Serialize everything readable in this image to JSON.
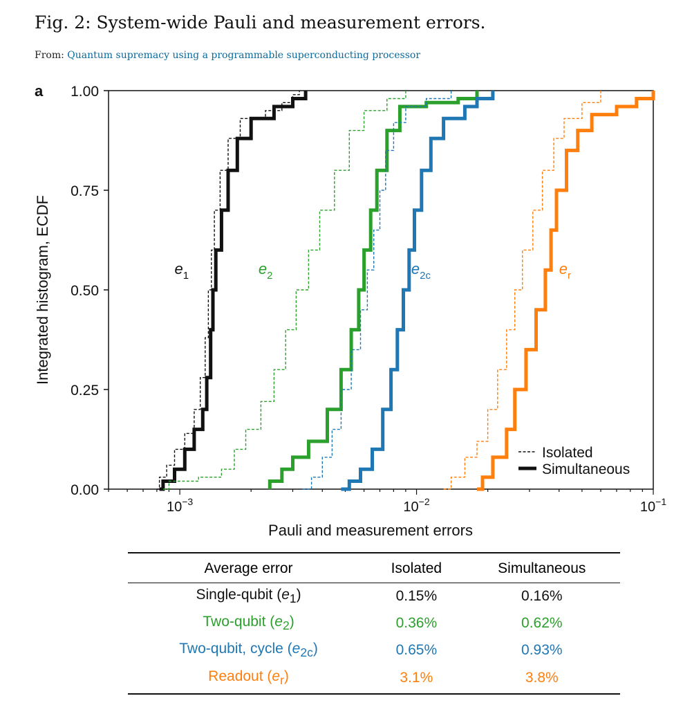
{
  "figure": {
    "title": "Fig. 2: System-wide Pauli and measurement errors.",
    "from_label": "From:",
    "from_link": "Quantum supremacy using a programmable superconducting processor",
    "panel_label": "a"
  },
  "colors": {
    "e1": "#111111",
    "e2": "#2ca02c",
    "e2c": "#1f77b4",
    "er": "#ff7f0e"
  },
  "chart_data": {
    "type": "line",
    "subtype": "ecdf",
    "xscale": "log",
    "xlim": [
      0.0005,
      0.1
    ],
    "ylim": [
      0,
      1
    ],
    "xlabel": "Pauli and measurement errors",
    "ylabel": "Integrated histogram, ECDF",
    "x_ticks": [
      {
        "value": 0.001,
        "base": "10",
        "exp": "−3"
      },
      {
        "value": 0.01,
        "base": "10",
        "exp": "−2"
      },
      {
        "value": 0.1,
        "base": "10",
        "exp": "−1"
      }
    ],
    "y_ticks": [
      {
        "value": 0,
        "label": "0.00"
      },
      {
        "value": 0.25,
        "label": "0.25"
      },
      {
        "value": 0.5,
        "label": "0.50"
      },
      {
        "value": 0.75,
        "label": "0.75"
      },
      {
        "value": 1,
        "label": "1.00"
      }
    ],
    "legend": {
      "position": "bottom-right",
      "entries": [
        {
          "label": "Isolated",
          "style": "dashed"
        },
        {
          "label": "Simultaneous",
          "style": "solid"
        }
      ]
    },
    "series": [
      {
        "key": "e1",
        "label_base": "e",
        "label_sub": "1",
        "label_at": [
          0.00095,
          0.54
        ],
        "isolated": [
          [
            0.0008,
            0
          ],
          [
            0.00082,
            0.03
          ],
          [
            0.00088,
            0.06
          ],
          [
            0.00095,
            0.1
          ],
          [
            0.00105,
            0.14
          ],
          [
            0.00115,
            0.2
          ],
          [
            0.00122,
            0.28
          ],
          [
            0.00128,
            0.38
          ],
          [
            0.00132,
            0.5
          ],
          [
            0.00136,
            0.6
          ],
          [
            0.0014,
            0.7
          ],
          [
            0.00148,
            0.8
          ],
          [
            0.0016,
            0.88
          ],
          [
            0.0018,
            0.93
          ],
          [
            0.0023,
            0.95
          ],
          [
            0.0027,
            0.97
          ],
          [
            0.003,
            0.99
          ],
          [
            0.0032,
            1
          ]
        ],
        "simultaneous": [
          [
            0.00082,
            0
          ],
          [
            0.00085,
            0.02
          ],
          [
            0.00095,
            0.05
          ],
          [
            0.00105,
            0.1
          ],
          [
            0.00115,
            0.15
          ],
          [
            0.00125,
            0.2
          ],
          [
            0.0013,
            0.28
          ],
          [
            0.00135,
            0.4
          ],
          [
            0.00138,
            0.5
          ],
          [
            0.00142,
            0.6
          ],
          [
            0.0015,
            0.7
          ],
          [
            0.0016,
            0.8
          ],
          [
            0.00175,
            0.88
          ],
          [
            0.002,
            0.93
          ],
          [
            0.0025,
            0.96
          ],
          [
            0.003,
            0.98
          ],
          [
            0.0034,
            1
          ]
        ]
      },
      {
        "key": "e2",
        "label_base": "e",
        "label_sub": "2",
        "label_at": [
          0.00215,
          0.54
        ],
        "isolated": [
          [
            0.00085,
            0
          ],
          [
            0.0009,
            0.02
          ],
          [
            0.0012,
            0.03
          ],
          [
            0.0015,
            0.05
          ],
          [
            0.0017,
            0.1
          ],
          [
            0.0019,
            0.15
          ],
          [
            0.0022,
            0.22
          ],
          [
            0.0025,
            0.3
          ],
          [
            0.0028,
            0.4
          ],
          [
            0.0031,
            0.5
          ],
          [
            0.0035,
            0.6
          ],
          [
            0.0039,
            0.7
          ],
          [
            0.0045,
            0.8
          ],
          [
            0.0052,
            0.9
          ],
          [
            0.006,
            0.95
          ],
          [
            0.0075,
            0.98
          ],
          [
            0.009,
            1
          ]
        ],
        "simultaneous": [
          [
            0.0024,
            0
          ],
          [
            0.0024,
            0.02
          ],
          [
            0.0027,
            0.05
          ],
          [
            0.003,
            0.08
          ],
          [
            0.0035,
            0.12
          ],
          [
            0.0042,
            0.2
          ],
          [
            0.0048,
            0.3
          ],
          [
            0.0053,
            0.4
          ],
          [
            0.0057,
            0.5
          ],
          [
            0.006,
            0.6
          ],
          [
            0.0064,
            0.7
          ],
          [
            0.0068,
            0.8
          ],
          [
            0.0075,
            0.9
          ],
          [
            0.0085,
            0.96
          ],
          [
            0.011,
            0.97
          ],
          [
            0.015,
            0.98
          ],
          [
            0.018,
            1
          ]
        ]
      },
      {
        "key": "e2c",
        "label_base": "e",
        "label_sub": "2c",
        "label_at": [
          0.0095,
          0.54
        ],
        "isolated": [
          [
            0.0033,
            0
          ],
          [
            0.0036,
            0.03
          ],
          [
            0.004,
            0.08
          ],
          [
            0.0044,
            0.15
          ],
          [
            0.0048,
            0.25
          ],
          [
            0.0053,
            0.35
          ],
          [
            0.0058,
            0.45
          ],
          [
            0.0062,
            0.55
          ],
          [
            0.0066,
            0.65
          ],
          [
            0.007,
            0.75
          ],
          [
            0.0074,
            0.85
          ],
          [
            0.008,
            0.92
          ],
          [
            0.009,
            0.96
          ],
          [
            0.011,
            0.98
          ],
          [
            0.014,
            1
          ]
        ],
        "simultaneous": [
          [
            0.0048,
            0
          ],
          [
            0.0052,
            0.02
          ],
          [
            0.0058,
            0.05
          ],
          [
            0.0065,
            0.1
          ],
          [
            0.0072,
            0.2
          ],
          [
            0.0078,
            0.3
          ],
          [
            0.0083,
            0.4
          ],
          [
            0.0088,
            0.5
          ],
          [
            0.0093,
            0.6
          ],
          [
            0.0098,
            0.7
          ],
          [
            0.0105,
            0.8
          ],
          [
            0.0115,
            0.88
          ],
          [
            0.013,
            0.93
          ],
          [
            0.016,
            0.96
          ],
          [
            0.018,
            0.98
          ],
          [
            0.021,
            1
          ]
        ]
      },
      {
        "key": "er",
        "label_base": "e",
        "label_sub": "r",
        "label_at": [
          0.04,
          0.54
        ],
        "isolated": [
          [
            0.013,
            0
          ],
          [
            0.014,
            0.03
          ],
          [
            0.016,
            0.08
          ],
          [
            0.018,
            0.12
          ],
          [
            0.02,
            0.2
          ],
          [
            0.022,
            0.3
          ],
          [
            0.024,
            0.4
          ],
          [
            0.026,
            0.5
          ],
          [
            0.028,
            0.6
          ],
          [
            0.031,
            0.7
          ],
          [
            0.034,
            0.8
          ],
          [
            0.038,
            0.88
          ],
          [
            0.042,
            0.93
          ],
          [
            0.05,
            0.97
          ],
          [
            0.06,
            1
          ]
        ],
        "simultaneous": [
          [
            0.018,
            0
          ],
          [
            0.019,
            0.03
          ],
          [
            0.021,
            0.08
          ],
          [
            0.024,
            0.15
          ],
          [
            0.026,
            0.25
          ],
          [
            0.029,
            0.35
          ],
          [
            0.032,
            0.45
          ],
          [
            0.035,
            0.55
          ],
          [
            0.037,
            0.65
          ],
          [
            0.039,
            0.75
          ],
          [
            0.043,
            0.85
          ],
          [
            0.048,
            0.9
          ],
          [
            0.055,
            0.94
          ],
          [
            0.07,
            0.96
          ],
          [
            0.085,
            0.98
          ],
          [
            0.1,
            1
          ]
        ]
      }
    ]
  },
  "table": {
    "headers": [
      "Average error",
      "Isolated",
      "Simultaneous"
    ],
    "rows": [
      {
        "key": "e1",
        "label": "Single-qubit (",
        "symbol": "e",
        "sub": "1",
        "close": ")",
        "isolated": "0.15%",
        "simultaneous": "0.16%"
      },
      {
        "key": "e2",
        "label": "Two-qubit (",
        "symbol": "e",
        "sub": "2",
        "close": ")",
        "isolated": "0.36%",
        "simultaneous": "0.62%"
      },
      {
        "key": "e2c",
        "label": "Two-qubit, cycle (",
        "symbol": "e",
        "sub": "2c",
        "close": ")",
        "isolated": "0.65%",
        "simultaneous": "0.93%"
      },
      {
        "key": "er",
        "label": "Readout (",
        "symbol": "e",
        "sub": "r",
        "close": ")",
        "isolated": "3.1%",
        "simultaneous": "3.8%"
      }
    ]
  }
}
